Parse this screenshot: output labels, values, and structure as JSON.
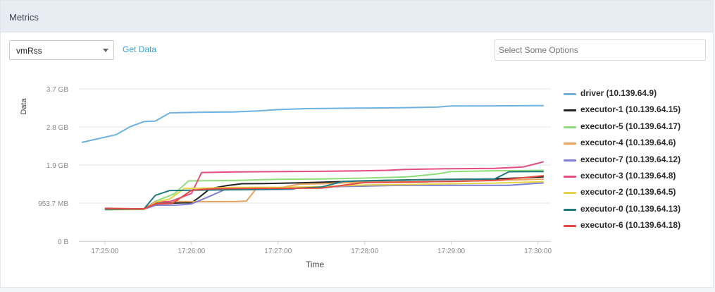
{
  "header": {
    "title": "Metrics"
  },
  "controls": {
    "metric_select": {
      "value": "vmRss"
    },
    "get_data_label": "Get Data",
    "options_placeholder": "Select Some Options"
  },
  "chart_data": {
    "type": "line",
    "title": "",
    "xlabel": "Time",
    "ylabel": "Data",
    "x_axis": {
      "range": [
        "17:24:42",
        "17:30:09"
      ],
      "ticks": [
        "17:25:00",
        "17:26:00",
        "17:27:00",
        "17:28:00",
        "17:29:00",
        "17:30:00"
      ]
    },
    "y_axis": {
      "range_mb": [
        0,
        3815
      ],
      "ticks": [
        {
          "label": "0 B",
          "value_mb": 0
        },
        {
          "label": "953.7 MB",
          "value_mb": 953.7
        },
        {
          "label": "1.9 GB",
          "value_mb": 1907.4
        },
        {
          "label": "2.8 GB",
          "value_mb": 2861.0
        },
        {
          "label": "3.7 GB",
          "value_mb": 3814.7
        }
      ]
    },
    "grid": "horizontal",
    "legend_position": "right",
    "series": [
      {
        "name": "driver (10.139.64.9)",
        "color": "#6fb1e0",
        "points": [
          [
            "17:24:44",
            2475
          ],
          [
            "17:25:08",
            2670
          ],
          [
            "17:25:17",
            2860
          ],
          [
            "17:25:27",
            2995
          ],
          [
            "17:25:35",
            3010
          ],
          [
            "17:25:45",
            3215
          ],
          [
            "17:26:00",
            3225
          ],
          [
            "17:26:30",
            3240
          ],
          [
            "17:26:45",
            3260
          ],
          [
            "17:27:00",
            3295
          ],
          [
            "17:27:20",
            3320
          ],
          [
            "17:28:00",
            3335
          ],
          [
            "17:28:30",
            3345
          ],
          [
            "17:28:50",
            3358
          ],
          [
            "17:29:00",
            3385
          ],
          [
            "17:29:30",
            3390
          ],
          [
            "17:30:00",
            3395
          ],
          [
            "17:30:04",
            3395
          ]
        ]
      },
      {
        "name": "executor-1 (10.139.64.15)",
        "color": "#222222",
        "points": [
          [
            "17:25:00",
            810
          ],
          [
            "17:25:27",
            810
          ],
          [
            "17:25:35",
            945
          ],
          [
            "17:26:00",
            965
          ],
          [
            "17:26:05",
            1090
          ],
          [
            "17:26:13",
            1320
          ],
          [
            "17:26:25",
            1395
          ],
          [
            "17:26:35",
            1440
          ],
          [
            "17:26:50",
            1445
          ],
          [
            "17:27:15",
            1460
          ],
          [
            "17:28:00",
            1510
          ],
          [
            "17:28:30",
            1535
          ],
          [
            "17:29:00",
            1550
          ],
          [
            "17:29:30",
            1560
          ],
          [
            "17:30:04",
            1610
          ]
        ]
      },
      {
        "name": "executor-5 (10.139.64.17)",
        "color": "#8fdd7a",
        "points": [
          [
            "17:25:00",
            790
          ],
          [
            "17:25:27",
            795
          ],
          [
            "17:25:35",
            1000
          ],
          [
            "17:25:48",
            1185
          ],
          [
            "17:25:58",
            1510
          ],
          [
            "17:26:30",
            1520
          ],
          [
            "17:27:00",
            1550
          ],
          [
            "17:27:30",
            1560
          ],
          [
            "17:28:00",
            1580
          ],
          [
            "17:28:30",
            1610
          ],
          [
            "17:28:50",
            1685
          ],
          [
            "17:29:00",
            1745
          ],
          [
            "17:29:30",
            1765
          ],
          [
            "17:30:04",
            1775
          ]
        ]
      },
      {
        "name": "executor-4 (10.139.64.6)",
        "color": "#e5a560",
        "points": [
          [
            "17:25:00",
            800
          ],
          [
            "17:25:27",
            800
          ],
          [
            "17:25:35",
            985
          ],
          [
            "17:25:45",
            1000
          ],
          [
            "17:26:00",
            990
          ],
          [
            "17:26:30",
            995
          ],
          [
            "17:26:38",
            1005
          ],
          [
            "17:26:45",
            1320
          ],
          [
            "17:27:00",
            1330
          ],
          [
            "17:27:15",
            1430
          ],
          [
            "17:27:30",
            1440
          ],
          [
            "17:28:00",
            1480
          ],
          [
            "17:28:30",
            1490
          ],
          [
            "17:29:00",
            1495
          ],
          [
            "17:29:30",
            1525
          ],
          [
            "17:30:04",
            1555
          ]
        ]
      },
      {
        "name": "executor-7 (10.139.64.12)",
        "color": "#7d7fd4",
        "points": [
          [
            "17:25:00",
            790
          ],
          [
            "17:25:27",
            800
          ],
          [
            "17:25:35",
            900
          ],
          [
            "17:25:50",
            905
          ],
          [
            "17:26:00",
            935
          ],
          [
            "17:26:10",
            1085
          ],
          [
            "17:26:23",
            1290
          ],
          [
            "17:26:50",
            1295
          ],
          [
            "17:27:10",
            1300
          ],
          [
            "17:27:15",
            1350
          ],
          [
            "17:27:30",
            1360
          ],
          [
            "17:28:00",
            1380
          ],
          [
            "17:28:20",
            1395
          ],
          [
            "17:29:00",
            1400
          ],
          [
            "17:29:30",
            1400
          ],
          [
            "17:29:40",
            1400
          ],
          [
            "17:30:04",
            1460
          ]
        ]
      },
      {
        "name": "executor-3 (10.139.64.8)",
        "color": "#e24e7e",
        "points": [
          [
            "17:25:00",
            825
          ],
          [
            "17:25:27",
            805
          ],
          [
            "17:25:35",
            985
          ],
          [
            "17:25:45",
            990
          ],
          [
            "17:26:00",
            1195
          ],
          [
            "17:26:07",
            1720
          ],
          [
            "17:26:30",
            1735
          ],
          [
            "17:27:00",
            1745
          ],
          [
            "17:27:30",
            1750
          ],
          [
            "17:28:00",
            1765
          ],
          [
            "17:28:15",
            1775
          ],
          [
            "17:28:30",
            1800
          ],
          [
            "17:29:00",
            1815
          ],
          [
            "17:29:30",
            1825
          ],
          [
            "17:29:50",
            1860
          ],
          [
            "17:30:04",
            1990
          ]
        ]
      },
      {
        "name": "executor-2 (10.139.64.5)",
        "color": "#e7d24a",
        "points": [
          [
            "17:25:00",
            790
          ],
          [
            "17:25:27",
            795
          ],
          [
            "17:25:35",
            975
          ],
          [
            "17:25:45",
            1060
          ],
          [
            "17:25:55",
            1320
          ],
          [
            "17:26:30",
            1345
          ],
          [
            "17:27:00",
            1350
          ],
          [
            "17:27:30",
            1365
          ],
          [
            "17:28:00",
            1410
          ],
          [
            "17:28:30",
            1420
          ],
          [
            "17:29:00",
            1440
          ],
          [
            "17:29:30",
            1455
          ],
          [
            "17:30:04",
            1490
          ]
        ]
      },
      {
        "name": "executor-0 (10.139.64.13)",
        "color": "#1e7a7f",
        "points": [
          [
            "17:25:00",
            800
          ],
          [
            "17:25:27",
            805
          ],
          [
            "17:25:35",
            1150
          ],
          [
            "17:25:45",
            1270
          ],
          [
            "17:26:00",
            1275
          ],
          [
            "17:26:30",
            1290
          ],
          [
            "17:27:00",
            1305
          ],
          [
            "17:27:30",
            1355
          ],
          [
            "17:27:45",
            1500
          ],
          [
            "17:28:00",
            1515
          ],
          [
            "17:28:30",
            1535
          ],
          [
            "17:29:00",
            1545
          ],
          [
            "17:29:30",
            1560
          ],
          [
            "17:29:40",
            1740
          ],
          [
            "17:30:04",
            1745
          ]
        ]
      },
      {
        "name": "executor-6 (10.139.64.18)",
        "color": "#e04a40",
        "points": [
          [
            "17:25:00",
            820
          ],
          [
            "17:25:27",
            810
          ],
          [
            "17:25:35",
            935
          ],
          [
            "17:25:47",
            950
          ],
          [
            "17:26:00",
            1275
          ],
          [
            "17:26:10",
            1305
          ],
          [
            "17:26:20",
            1315
          ],
          [
            "17:26:30",
            1320
          ],
          [
            "17:27:00",
            1325
          ],
          [
            "17:27:30",
            1330
          ],
          [
            "17:28:00",
            1470
          ],
          [
            "17:28:30",
            1480
          ],
          [
            "17:29:00",
            1500
          ],
          [
            "17:29:30",
            1520
          ],
          [
            "17:30:04",
            1640
          ]
        ]
      }
    ]
  }
}
